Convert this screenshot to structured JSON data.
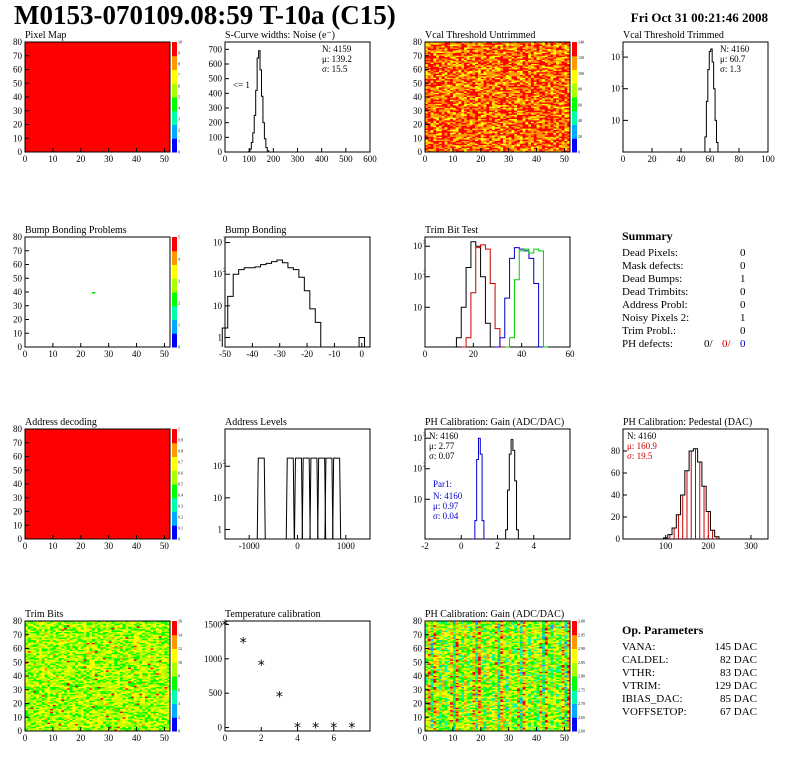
{
  "header": {
    "title": "M0153-070109.08:59 T-10a (C15)",
    "date": "Fri Oct 31 00:21:46 2008"
  },
  "colors": {
    "map_red": "#ff0000",
    "trim_red": "#cc0000",
    "trim_green": "#00cc00",
    "trim_blue": "#0000cc",
    "pedestal_red": "#cc0000",
    "par1_blue": "#0000cc"
  },
  "chart_data": [
    {
      "id": "pixel_map",
      "type": "heatmap",
      "title": "Pixel Map",
      "xlim": [
        0,
        52
      ],
      "ylim": [
        0,
        80
      ],
      "xticks": [
        "0",
        "10",
        "20",
        "30",
        "40",
        "50"
      ],
      "yticks": [
        "0",
        "10",
        "20",
        "30",
        "40",
        "50",
        "60",
        "70",
        "80"
      ],
      "fill": "uniform-red",
      "zlim": [
        0,
        10
      ],
      "zticks": [
        "0",
        "1",
        "2",
        "3",
        "4",
        "5",
        "6",
        "7",
        "8",
        "9",
        "10"
      ]
    },
    {
      "id": "scurve_widths",
      "type": "bar",
      "title": "S-Curve widths: Noise (e⁻)",
      "xlim": [
        0,
        600
      ],
      "ylim": [
        0,
        750
      ],
      "xticks": [
        "0",
        "100",
        "200",
        "300",
        "400",
        "500",
        "600"
      ],
      "yticks": [
        "0",
        "100",
        "200",
        "300",
        "400",
        "500",
        "600",
        "700"
      ],
      "stats": [
        "N: 4159",
        "μ: 139.2",
        "σ: 15.5"
      ],
      "annotation": "<= 1",
      "x": [
        94,
        100,
        106,
        112,
        118,
        124,
        130,
        136,
        142,
        148,
        154,
        160,
        166,
        172,
        178,
        184
      ],
      "y": [
        0,
        2,
        20,
        65,
        130,
        250,
        420,
        640,
        690,
        560,
        380,
        200,
        90,
        30,
        8,
        0
      ]
    },
    {
      "id": "vcal_untrimmed",
      "type": "heatmap",
      "title": "Vcal Threshold Untrimmed",
      "xlim": [
        0,
        52
      ],
      "ylim": [
        0,
        80
      ],
      "xticks": [
        "0",
        "10",
        "20",
        "30",
        "40",
        "50"
      ],
      "yticks": [
        "0",
        "10",
        "20",
        "30",
        "40",
        "50",
        "60",
        "70",
        "80"
      ],
      "fill": "orange-noise",
      "zlim": [
        0,
        140
      ],
      "zticks": [
        "0",
        "20",
        "40",
        "60",
        "80",
        "100",
        "120",
        "140"
      ]
    },
    {
      "id": "vcal_trimmed",
      "type": "bar",
      "title": "Vcal Threshold Trimmed",
      "xlim": [
        0,
        100
      ],
      "ylog": true,
      "ylim": [
        1,
        3000
      ],
      "xticks": [
        "0",
        "20",
        "40",
        "60",
        "80",
        "100"
      ],
      "ydecades": [
        1,
        2,
        3
      ],
      "stats": [
        "N: 4160",
        "μ: 60.7",
        "σ: 1.3"
      ],
      "x": [
        56,
        57,
        58,
        59,
        60,
        61,
        62,
        63,
        64,
        65,
        66
      ],
      "y": [
        1,
        3,
        40,
        400,
        1500,
        1800,
        700,
        100,
        10,
        2,
        1
      ]
    },
    {
      "id": "bump_problems",
      "type": "heatmap",
      "title": "Bump Bonding Problems",
      "xlim": [
        0,
        52
      ],
      "ylim": [
        0,
        80
      ],
      "xticks": [
        "0",
        "10",
        "20",
        "30",
        "40",
        "50"
      ],
      "yticks": [
        "0",
        "10",
        "20",
        "30",
        "40",
        "50",
        "60",
        "70",
        "80"
      ],
      "fill": "empty-one-pixel",
      "pixel": [
        24,
        40
      ],
      "zlim": [
        0,
        5
      ],
      "zticks": [
        "0",
        "1",
        "2",
        "3",
        "4",
        "5"
      ]
    },
    {
      "id": "bump_bonding",
      "type": "bar",
      "title": "Bump Bonding",
      "xlim": [
        -50,
        3
      ],
      "ylog": true,
      "ylim": [
        0.5,
        1500
      ],
      "xticks": [
        "-50",
        "-40",
        "-30",
        "-20",
        "-10",
        "0"
      ],
      "ydecades": [
        0,
        1,
        2,
        3
      ],
      "x": [
        -50,
        -48,
        -46,
        -44,
        -42,
        -40,
        -38,
        -36,
        -34,
        -32,
        -30,
        -28,
        -26,
        -24,
        -22,
        -20,
        -18,
        -16,
        -14,
        -12,
        -10,
        -8,
        -6,
        -4,
        -2,
        0
      ],
      "y": [
        2,
        20,
        100,
        140,
        160,
        160,
        170,
        200,
        220,
        250,
        280,
        230,
        160,
        140,
        80,
        30,
        8,
        3,
        0,
        0,
        0,
        0,
        0,
        0,
        0,
        1
      ]
    },
    {
      "id": "trim_bit_test",
      "type": "line",
      "title": "Trim Bit Test",
      "xlim": [
        0,
        60
      ],
      "ylog": true,
      "ylim": [
        0.5,
        2000
      ],
      "xticks": [
        "0",
        "20",
        "40",
        "60"
      ],
      "ydecades": [
        1,
        2,
        3
      ],
      "series": [
        {
          "color": "#000000",
          "x": [
            12,
            14,
            16,
            18,
            20,
            22,
            24,
            26,
            28
          ],
          "y": [
            0,
            1,
            10,
            200,
            1400,
            1000,
            100,
            3,
            0
          ]
        },
        {
          "color": "#cc0000",
          "x": [
            16,
            18,
            20,
            22,
            24,
            26,
            28,
            30,
            32
          ],
          "y": [
            0,
            1,
            30,
            900,
            1100,
            800,
            60,
            2,
            0
          ]
        },
        {
          "color": "#0000cc",
          "x": [
            30,
            32,
            34,
            36,
            38,
            40,
            42,
            44,
            46,
            48
          ],
          "y": [
            0,
            1,
            20,
            400,
            900,
            800,
            700,
            400,
            60,
            0
          ]
        },
        {
          "color": "#00cc00",
          "x": [
            34,
            36,
            38,
            40,
            42,
            44,
            46,
            48,
            50
          ],
          "y": [
            0,
            1,
            80,
            700,
            800,
            600,
            800,
            700,
            0
          ]
        }
      ]
    },
    {
      "id": "address_decoding",
      "type": "heatmap",
      "title": "Address decoding",
      "xlim": [
        0,
        52
      ],
      "ylim": [
        0,
        80
      ],
      "xticks": [
        "0",
        "10",
        "20",
        "30",
        "40",
        "50"
      ],
      "yticks": [
        "0",
        "10",
        "20",
        "30",
        "40",
        "50",
        "60",
        "70",
        "80"
      ],
      "fill": "uniform-red",
      "zlim": [
        0,
        1
      ],
      "zticks": [
        "0",
        "0.1",
        "0.2",
        "0.3",
        "0.4",
        "0.5",
        "0.6",
        "0.7",
        "0.8",
        "0.9",
        "1"
      ]
    },
    {
      "id": "address_levels",
      "type": "bar",
      "title": "Address Levels",
      "xlim": [
        -1500,
        1500
      ],
      "ylog": true,
      "ylim": [
        0.5,
        1500
      ],
      "xticks": [
        "-1000",
        "0",
        "1000"
      ],
      "ydecades": [
        0,
        1,
        2
      ],
      "peaks": [
        -750,
        -150,
        20,
        180,
        340,
        500,
        650,
        810
      ],
      "peak_height": 180
    },
    {
      "id": "ph_gain",
      "type": "line",
      "title": "PH Calibration: Gain (ADC/DAC)",
      "xlim": [
        -2,
        6
      ],
      "ylog": true,
      "ylim": [
        0.5,
        2000
      ],
      "xticks": [
        "-2",
        "0",
        "2",
        "4"
      ],
      "ydecades": [
        1,
        2,
        3
      ],
      "stats": [
        "N: 4160",
        "μ: 2.77",
        "σ: 0.07"
      ],
      "par_label": "Par1:",
      "par_stats": [
        "N: 4160",
        "μ: 0.97",
        "σ: 0.04"
      ],
      "series": [
        {
          "color": "#000000",
          "x": [
            2.4,
            2.5,
            2.6,
            2.7,
            2.8,
            2.9,
            3.0,
            3.1,
            3.2
          ],
          "y": [
            0,
            1,
            20,
            300,
            900,
            400,
            40,
            1,
            0
          ]
        },
        {
          "color": "#0000cc",
          "x": [
            0.7,
            0.8,
            0.9,
            1.0,
            1.1,
            1.2,
            1.3
          ],
          "y": [
            0,
            2,
            200,
            1000,
            300,
            2,
            0
          ]
        }
      ]
    },
    {
      "id": "ph_pedestal",
      "type": "bar",
      "title": "PH Calibration: Pedestal (DAC)",
      "xlim": [
        0,
        340
      ],
      "ylim": [
        0,
        100
      ],
      "xticks": [
        "100",
        "200",
        "300"
      ],
      "yticks": [
        "0",
        "20",
        "40",
        "60",
        "80"
      ],
      "stats": [
        "N: 4160",
        "μ: 160.9",
        "σ: 19.5"
      ],
      "x": [
        100,
        110,
        120,
        130,
        140,
        150,
        160,
        170,
        180,
        190,
        200,
        210,
        220
      ],
      "y": [
        1,
        4,
        10,
        22,
        40,
        62,
        80,
        82,
        70,
        48,
        25,
        8,
        2
      ]
    },
    {
      "id": "trim_bits",
      "type": "heatmap",
      "title": "Trim Bits",
      "xlim": [
        0,
        52
      ],
      "ylim": [
        0,
        80
      ],
      "xticks": [
        "0",
        "10",
        "20",
        "30",
        "40",
        "50"
      ],
      "yticks": [
        "0",
        "10",
        "20",
        "30",
        "40",
        "50",
        "60",
        "70",
        "80"
      ],
      "fill": "green-noise",
      "zlim": [
        0,
        16
      ],
      "zticks": [
        "0",
        "2",
        "4",
        "6",
        "8",
        "10",
        "12",
        "14",
        "16"
      ]
    },
    {
      "id": "temperature_calibration",
      "type": "scatter",
      "title": "Temperature calibration",
      "xlim": [
        0,
        8
      ],
      "ylim": [
        -50,
        1550
      ],
      "xticks": [
        "0",
        "2",
        "4",
        "6"
      ],
      "yticks": [
        "0",
        "500",
        "1000",
        "1500"
      ],
      "x": [
        0,
        1,
        2,
        3,
        4,
        5,
        6,
        7
      ],
      "y": [
        1490,
        1240,
        910,
        450,
        0,
        0,
        0,
        0
      ]
    },
    {
      "id": "ph_gain_map",
      "type": "heatmap",
      "title": "PH Calibration: Gain (ADC/DAC)",
      "xlim": [
        0,
        52
      ],
      "ylim": [
        0,
        80
      ],
      "xticks": [
        "0",
        "10",
        "20",
        "30",
        "40",
        "50"
      ],
      "yticks": [
        "0",
        "10",
        "20",
        "30",
        "40",
        "50",
        "60",
        "70",
        "80"
      ],
      "fill": "column-stripes",
      "zlim": [
        2.6,
        3.0
      ],
      "zticks": [
        "2.60",
        "2.65",
        "2.70",
        "2.75",
        "2.80",
        "2.85",
        "2.90",
        "2.95",
        "3.00"
      ]
    }
  ],
  "summary": {
    "title": "Summary",
    "rows": [
      {
        "label": "Dead Pixels:",
        "value": "0"
      },
      {
        "label": "Mask defects:",
        "value": "0"
      },
      {
        "label": "Dead Bumps:",
        "value": "1"
      },
      {
        "label": "Dead Trimbits:",
        "value": "0"
      },
      {
        "label": "Address Probl:",
        "value": "0"
      },
      {
        "label": "Noisy Pixels 2:",
        "value": "1"
      },
      {
        "label": "Trim Probl.:",
        "value": "0"
      }
    ],
    "ph_label": "PH defects:",
    "ph_values": [
      "0/",
      "0/",
      "0"
    ]
  },
  "op_params": {
    "title": "Op. Parameters",
    "rows": [
      {
        "label": "VANA:",
        "value": "145 DAC"
      },
      {
        "label": "CALDEL:",
        "value": "82 DAC"
      },
      {
        "label": "VTHR:",
        "value": "83 DAC"
      },
      {
        "label": "VTRIM:",
        "value": "129 DAC"
      },
      {
        "label": "IBIAS_DAC:",
        "value": "85 DAC"
      },
      {
        "label": "VOFFSETOP:",
        "value": "67 DAC"
      }
    ]
  }
}
